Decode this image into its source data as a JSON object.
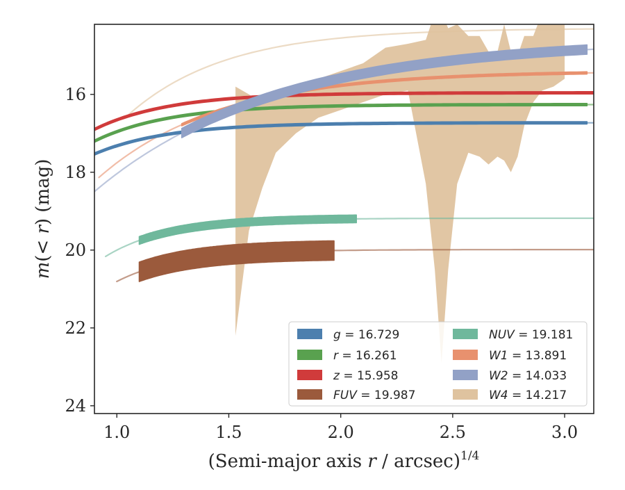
{
  "chart_data": {
    "type": "line",
    "xlabel": "(Semi-major axis r / arcsec)",
    "xlabel_parts": {
      "pre": "(Semi-major axis ",
      "var": "r",
      "post": " / arcsec)",
      "sup": "1/4"
    },
    "ylabel": "m(< r) (mag)",
    "ylabel_parts": {
      "m": "m",
      "open": "(",
      "lt": "< ",
      "r": "r",
      "close": ")",
      "unit": " (mag)"
    },
    "xlim": [
      0.9,
      3.13
    ],
    "ylim": [
      24.2,
      14.2
    ],
    "y_inverted": true,
    "xticks": [
      1.0,
      1.5,
      2.0,
      2.5,
      3.0
    ],
    "xtick_labels": [
      "1.0",
      "1.5",
      "2.0",
      "2.5",
      "3.0"
    ],
    "yticks": [
      16,
      18,
      20,
      22,
      24
    ],
    "ytick_labels": [
      "16",
      "18",
      "20",
      "22",
      "24"
    ],
    "legend_location": "lower-right",
    "legend_columns": 2,
    "series": [
      {
        "band": "g",
        "label_var": "g",
        "label_value": " = 16.729",
        "color": "#4c7fae",
        "model": {
          "m_tot": 16.729,
          "amp": 12.5,
          "k": 3.05,
          "x0": 0.9,
          "x1": 3.13
        },
        "data": {
          "x0": 0.9,
          "x1": 3.1,
          "halfwidth": 0.03
        }
      },
      {
        "band": "r",
        "label_var": "r",
        "label_value": " = 16.261",
        "color": "#59a14f",
        "model": {
          "m_tot": 16.261,
          "amp": 14.0,
          "k": 3.0,
          "x0": 0.9,
          "x1": 3.13
        },
        "data": {
          "x0": 0.9,
          "x1": 3.1,
          "halfwidth": 0.03
        }
      },
      {
        "band": "z",
        "label_var": "z",
        "label_value": " = 15.958",
        "color": "#d03b3b",
        "model": {
          "m_tot": 15.958,
          "amp": 14.0,
          "k": 3.0,
          "x0": 0.9,
          "x1": 3.13
        },
        "data": {
          "x0": 0.9,
          "x1": 3.13,
          "halfwidth": 0.03
        }
      },
      {
        "band": "FUV",
        "label_var": "FUV",
        "label_value": " = 19.987",
        "color": "#9b5a3c",
        "model": {
          "m_tot": 19.987,
          "amp": 30.0,
          "k": 3.6,
          "x0": 1.0,
          "x1": 3.13
        },
        "data": {
          "x0": 1.1,
          "x1": 1.97,
          "halfwidth": 0.25
        }
      },
      {
        "band": "NUV",
        "label_var": "NUV",
        "label_value": " = 19.181",
        "color": "#6fb89c",
        "model": {
          "m_tot": 19.181,
          "amp": 30.0,
          "k": 3.6,
          "x0": 0.95,
          "x1": 3.13
        },
        "data": {
          "x0": 1.1,
          "x1": 2.07,
          "halfwidth": 0.1
        }
      },
      {
        "band": "W1",
        "label_var": "W1",
        "label_value": " = 13.891",
        "color": "#e8916e",
        "model": {
          "m_tot": 15.4,
          "amp": 15.0,
          "k": 1.85,
          "x0": 0.92,
          "x1": 3.13
        },
        "data": {
          "x0": 1.29,
          "x1": 3.1,
          "halfwidth": 0.03
        }
      },
      {
        "band": "W2",
        "label_var": "W2",
        "label_value": " = 14.033",
        "color": "#92a1c6",
        "model": {
          "m_tot": 14.6,
          "amp": 12.0,
          "k": 1.25,
          "x0": 0.9,
          "x1": 3.13
        },
        "data": {
          "x0": 1.29,
          "x1": 3.1,
          "halfwidth": 0.12
        }
      },
      {
        "band": "W4",
        "label_var": "W4",
        "label_value": " = 14.217",
        "color": "#dfc39f",
        "model": {
          "m_tot": 14.3,
          "amp": 25.0,
          "k": 2.3,
          "x0": 1.05,
          "x1": 3.13
        },
        "band_x": [
          1.53,
          1.59,
          1.65,
          1.71,
          1.8,
          1.9,
          2.0,
          2.1,
          2.2,
          2.3,
          2.38,
          2.42,
          2.45,
          2.48,
          2.52,
          2.57,
          2.62,
          2.66,
          2.7,
          2.73,
          2.76,
          2.79,
          2.82,
          2.86,
          2.9,
          2.95,
          3.0
        ],
        "band_upper": [
          15.8,
          16.0,
          16.25,
          16.0,
          15.8,
          15.6,
          15.4,
          15.2,
          14.8,
          14.7,
          14.6,
          13.9,
          13.9,
          14.3,
          14.2,
          14.5,
          14.5,
          14.9,
          14.9,
          14.2,
          14.9,
          15.0,
          14.5,
          14.5,
          13.9,
          13.9,
          13.9
        ],
        "band_lower": [
          22.2,
          19.5,
          18.4,
          17.5,
          17.0,
          16.6,
          16.4,
          16.2,
          16.0,
          15.9,
          18.3,
          20.5,
          22.9,
          20.5,
          18.3,
          17.5,
          17.6,
          17.8,
          17.6,
          17.7,
          18.0,
          17.6,
          16.8,
          16.2,
          15.9,
          15.8,
          15.6
        ]
      }
    ]
  }
}
